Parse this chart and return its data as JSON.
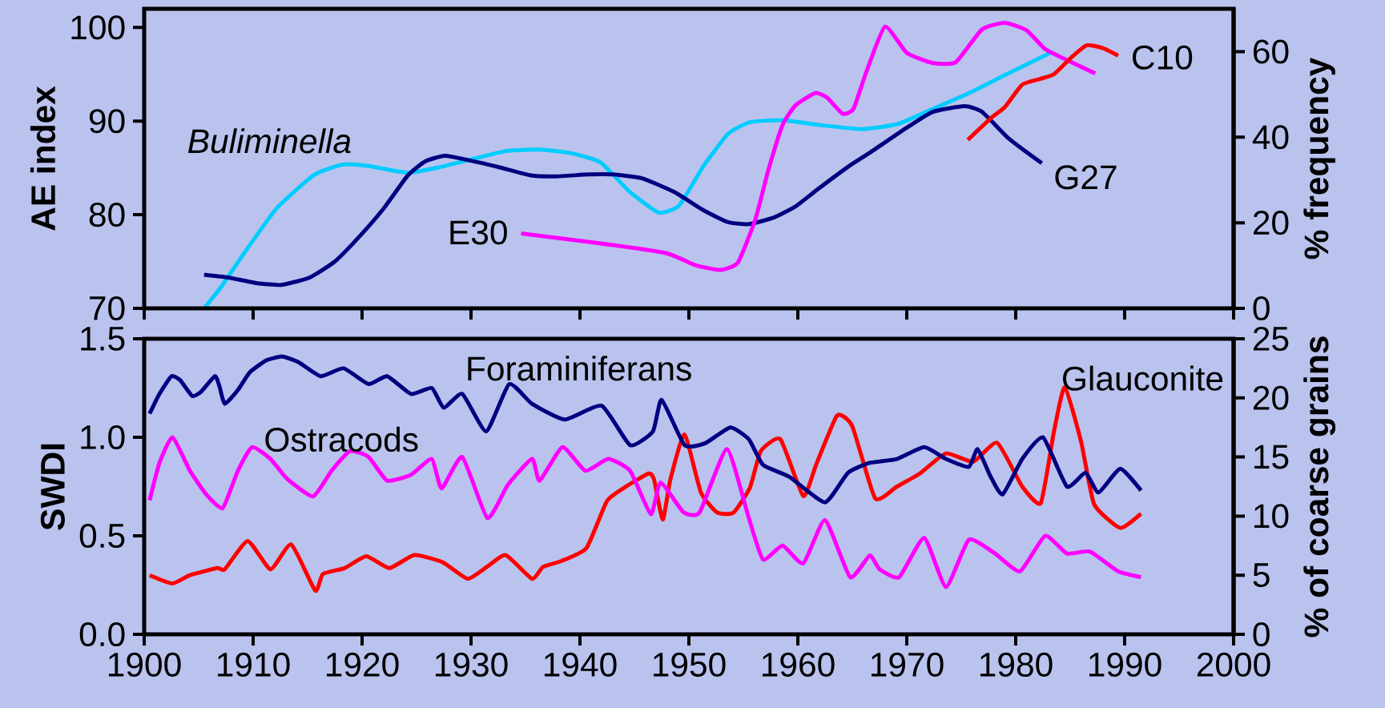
{
  "chart_data": [
    {
      "type": "line",
      "ylabel": "AE index",
      "y2label": "% frequency",
      "xlim": [
        1900,
        2000
      ],
      "xticks": [
        1900,
        1910,
        1920,
        1930,
        1940,
        1950,
        1960,
        1970,
        1980,
        1990,
        2000
      ],
      "ylim": [
        70,
        102
      ],
      "yticks": [
        70,
        80,
        90,
        100
      ],
      "y2lim": [
        0,
        70
      ],
      "y2ticks": [
        0,
        20,
        40,
        60
      ],
      "tick_labels": "y",
      "series": [
        {
          "name": "G27",
          "color": "#000080",
          "x": [
            1905.5,
            1907.7,
            1910.3,
            1912.6,
            1915.2,
            1917.5,
            1919.7,
            1922.0,
            1924.2,
            1925.8,
            1927.6,
            1929.9,
            1932.5,
            1935.5,
            1937.8,
            1940.8,
            1943.0,
            1945.7,
            1948.7,
            1951.3,
            1953.6,
            1955.5,
            1957.8,
            1959.8,
            1961.8,
            1964.7,
            1966.7,
            1970.0,
            1972.4,
            1975.3,
            1976.9,
            1979.4,
            1982.4
          ],
          "values": [
            73.6,
            73.3,
            72.7,
            72.5,
            73.3,
            75.0,
            77.6,
            80.7,
            84.2,
            85.7,
            86.3,
            85.8,
            85.1,
            84.2,
            84.1,
            84.3,
            84.3,
            83.9,
            82.4,
            80.5,
            79.2,
            79.0,
            79.7,
            80.9,
            82.7,
            85.2,
            86.7,
            89.3,
            91.0,
            91.6,
            91.0,
            88.1,
            85.5
          ]
        },
        {
          "name": "Buliminella",
          "color": "#00ccff",
          "axis": "y2",
          "x": [
            1905.5,
            1907.0,
            1909.2,
            1912.2,
            1915.6,
            1918.2,
            1920.5,
            1924.2,
            1927.3,
            1930.3,
            1933.3,
            1936.3,
            1939.3,
            1941.9,
            1944.5,
            1947.2,
            1949.1,
            1951.3,
            1953.6,
            1955.6,
            1958.6,
            1961.8,
            1965.9,
            1969.2,
            1972.4,
            1975.7,
            1979.0,
            1983.4
          ],
          "values": [
            0,
            4.8,
            13.0,
            23.5,
            31.2,
            33.6,
            33.3,
            31.7,
            33.1,
            35.0,
            36.8,
            37.1,
            36.2,
            34.1,
            27.4,
            22.4,
            24.0,
            33.1,
            40.8,
            43.5,
            44.0,
            42.9,
            41.9,
            43.1,
            46.6,
            50.3,
            54.5,
            60.0
          ]
        },
        {
          "name": "E30",
          "color": "#ff00ff",
          "x": [
            1934.6,
            1941.5,
            1947.9,
            1950.6,
            1952.9,
            1954.5,
            1956.1,
            1957.3,
            1958.6,
            1959.8,
            1961.6,
            1962.7,
            1964.1,
            1965.1,
            1966.3,
            1968.0,
            1970.0,
            1972.4,
            1974.5,
            1976.9,
            1979.0,
            1981.0,
            1982.7,
            1985.1,
            1987.3
          ],
          "values": [
            78.0,
            77.0,
            75.9,
            74.6,
            74.1,
            74.9,
            79.5,
            84.8,
            89.6,
            91.7,
            93.0,
            92.5,
            90.8,
            91.3,
            95.3,
            100.1,
            97.3,
            96.2,
            96.3,
            99.8,
            100.5,
            99.7,
            97.7,
            96.3,
            95.1
          ]
        },
        {
          "name": "C10",
          "color": "#ff0000",
          "x": [
            1975.6,
            1977.8,
            1979.0,
            1980.6,
            1982.2,
            1983.5,
            1985.1,
            1986.5,
            1988.0,
            1989.4
          ],
          "values": [
            88.0,
            90.4,
            91.5,
            93.9,
            94.5,
            95.0,
            96.8,
            98.1,
            97.8,
            97.0
          ]
        }
      ]
    },
    {
      "type": "line",
      "ylabel": "SWDI",
      "y2label": "% of coarse grains",
      "xlim": [
        1900,
        2000
      ],
      "xticks": [
        1900,
        1910,
        1920,
        1930,
        1940,
        1950,
        1960,
        1970,
        1980,
        1990,
        2000
      ],
      "ylim": [
        0,
        1.5
      ],
      "yticks": [
        {
          "value": 0,
          "label": "0.0"
        },
        0.5,
        {
          "value": 1,
          "label": "1.0"
        },
        1.5
      ],
      "y2lim": [
        0,
        25
      ],
      "y2ticks": [
        0,
        5,
        10,
        15,
        20,
        25
      ],
      "series": [
        {
          "name": "Foraminiferans",
          "color": "#000080",
          "x": [
            1900.5,
            1901.4,
            1902.5,
            1903.3,
            1904.4,
            1905.2,
            1906.5,
            1906.9,
            1907.4,
            1908.6,
            1909.7,
            1911.2,
            1912.7,
            1914.2,
            1916.2,
            1918.3,
            1920.6,
            1922.3,
            1924.5,
            1926.4,
            1927.5,
            1929.2,
            1931.4,
            1933.5,
            1935.6,
            1938.6,
            1942.0,
            1944.6,
            1946.7,
            1947.5,
            1949.6,
            1951.5,
            1953.8,
            1955.5,
            1956.8,
            1959.2,
            1962.5,
            1964.6,
            1966.6,
            1969.1,
            1971.6,
            1973.6,
            1975.7,
            1976.5,
            1977.7,
            1978.8,
            1980.6,
            1982.5,
            1984.7,
            1986.4,
            1987.6,
            1989.6,
            1991.5
          ],
          "values": [
            1.12,
            1.22,
            1.31,
            1.29,
            1.21,
            1.23,
            1.31,
            1.26,
            1.17,
            1.24,
            1.33,
            1.39,
            1.41,
            1.38,
            1.31,
            1.35,
            1.27,
            1.31,
            1.22,
            1.25,
            1.15,
            1.22,
            1.03,
            1.27,
            1.17,
            1.09,
            1.16,
            0.96,
            1.03,
            1.19,
            0.96,
            0.97,
            1.05,
            0.99,
            0.86,
            0.8,
            0.67,
            0.82,
            0.87,
            0.89,
            0.95,
            0.89,
            0.85,
            0.94,
            0.8,
            0.71,
            0.89,
            1.0,
            0.75,
            0.82,
            0.72,
            0.84,
            0.73
          ]
        },
        {
          "name": "Ostracods",
          "color": "#ff00ff",
          "x": [
            1900.5,
            1901.4,
            1902.6,
            1904.2,
            1905.7,
            1907.2,
            1908.6,
            1909.9,
            1911.6,
            1913.1,
            1915.5,
            1917.2,
            1918.9,
            1920.6,
            1922.3,
            1924.5,
            1926.4,
            1927.3,
            1929.2,
            1931.5,
            1933.4,
            1935.6,
            1936.3,
            1938.4,
            1940.5,
            1942.6,
            1944.6,
            1946.5,
            1947.4,
            1949.5,
            1951.0,
            1953.5,
            1955.5,
            1956.8,
            1958.6,
            1960.5,
            1962.5,
            1964.8,
            1966.6,
            1967.5,
            1969.3,
            1971.6,
            1973.6,
            1975.7,
            1978.1,
            1980.4,
            1982.7,
            1984.7,
            1986.8,
            1989.4,
            1991.5
          ],
          "values": [
            0.68,
            0.87,
            1.0,
            0.83,
            0.71,
            0.64,
            0.83,
            0.95,
            0.89,
            0.79,
            0.7,
            0.83,
            0.93,
            0.9,
            0.78,
            0.81,
            0.89,
            0.74,
            0.9,
            0.59,
            0.76,
            0.89,
            0.78,
            0.95,
            0.83,
            0.89,
            0.83,
            0.61,
            0.77,
            0.62,
            0.62,
            0.94,
            0.59,
            0.38,
            0.45,
            0.36,
            0.58,
            0.29,
            0.4,
            0.33,
            0.29,
            0.49,
            0.24,
            0.48,
            0.41,
            0.32,
            0.5,
            0.41,
            0.42,
            0.32,
            0.29
          ]
        },
        {
          "name": "Glauconite",
          "color": "#ff0000",
          "axis": "y2",
          "x": [
            1900.5,
            1902.6,
            1904.2,
            1906.7,
            1907.4,
            1909.5,
            1911.6,
            1913.5,
            1915.7,
            1916.4,
            1918.4,
            1920.4,
            1922.5,
            1924.8,
            1927.4,
            1929.7,
            1931.6,
            1933.2,
            1935.6,
            1936.6,
            1938.3,
            1940.6,
            1942.5,
            1944.4,
            1946.3,
            1946.8,
            1947.6,
            1948.3,
            1949.6,
            1951.1,
            1952.6,
            1954.1,
            1955.6,
            1956.6,
            1958.4,
            1960.5,
            1961.7,
            1963.6,
            1965.0,
            1967.1,
            1969.1,
            1971.2,
            1973.6,
            1976.1,
            1978.3,
            1980.6,
            1982.3,
            1983.5,
            1984.5,
            1986.0,
            1987.2,
            1989.6,
            1991.5
          ],
          "values": [
            5.0,
            4.3,
            5.0,
            5.6,
            5.5,
            7.9,
            5.5,
            7.6,
            3.7,
            5.1,
            5.6,
            6.6,
            5.6,
            6.7,
            6.1,
            4.7,
            5.8,
            6.7,
            4.7,
            5.7,
            6.2,
            7.3,
            11.3,
            12.6,
            13.6,
            13.1,
            9.7,
            13.1,
            16.9,
            12.0,
            10.3,
            10.3,
            12.4,
            15.5,
            16.5,
            11.7,
            14.4,
            18.5,
            17.6,
            11.5,
            12.5,
            13.6,
            15.3,
            14.6,
            16.2,
            12.5,
            11.1,
            17.1,
            20.9,
            16.3,
            11.0,
            9.0,
            10.2
          ]
        }
      ]
    }
  ]
}
